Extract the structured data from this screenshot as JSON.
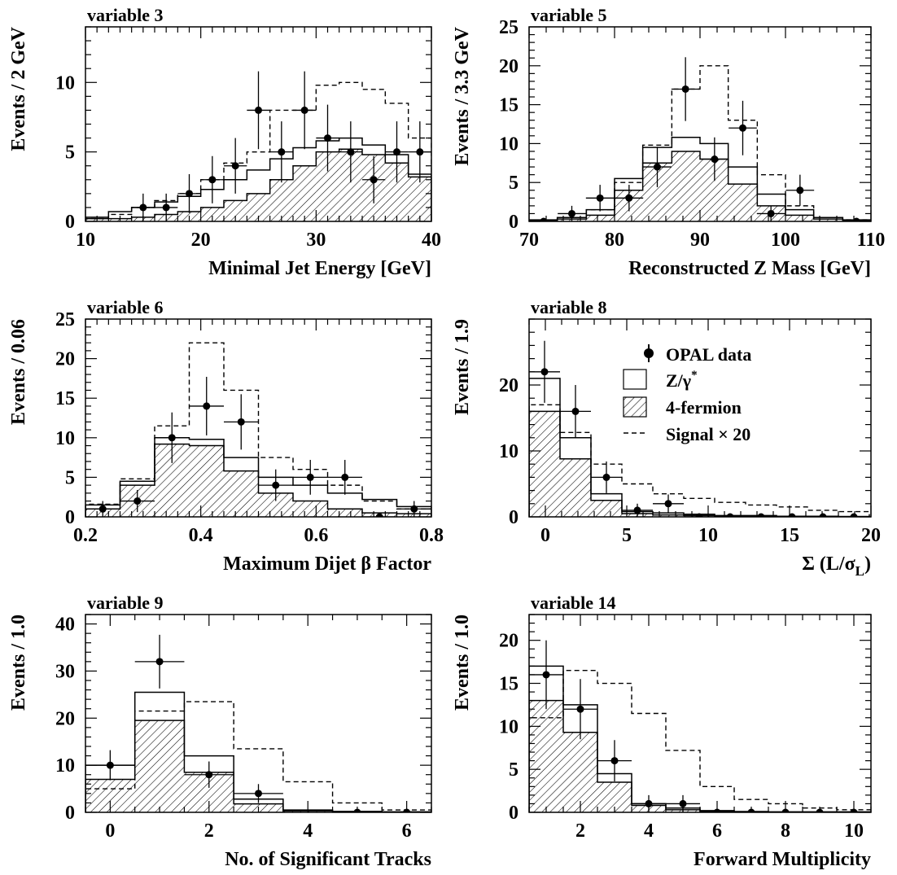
{
  "figure": {
    "background": "#ffffff",
    "ink": "#000000"
  },
  "legend": {
    "data_label": "OPAL data",
    "zg_label": "Z/γ",
    "zg_sup": "*",
    "four_fermion_label": "4-fermion",
    "signal_label": "Signal × 20"
  },
  "chart_data": [
    {
      "type": "histogram",
      "title": "variable  3",
      "xlabel": "Minimal Jet Energy [GeV]",
      "ylabel": "Events / 2 GeV",
      "xlim": [
        10,
        40
      ],
      "ylim": [
        0,
        14
      ],
      "xticks": [
        10,
        20,
        30,
        40
      ],
      "yticks": [
        0,
        5,
        10
      ],
      "minor_x": 1,
      "minor_y": 1,
      "edges": [
        10,
        12,
        14,
        16,
        18,
        20,
        22,
        24,
        26,
        28,
        30,
        32,
        34,
        36,
        38,
        40
      ],
      "series": [
        {
          "key": "four_fermion",
          "values": [
            0.2,
            0.2,
            0.3,
            0.5,
            0.7,
            1.0,
            1.5,
            2.0,
            3.0,
            4.0,
            5.0,
            5.2,
            4.8,
            4.2,
            3.2,
            1.8
          ]
        },
        {
          "key": "total_bg",
          "values": [
            0.3,
            0.7,
            1.0,
            1.4,
            1.8,
            2.3,
            3.0,
            3.7,
            4.5,
            5.3,
            5.8,
            6.0,
            5.5,
            4.8,
            3.4,
            2.0
          ]
        },
        {
          "key": "signal",
          "values": [
            0.2,
            0.5,
            1.0,
            1.5,
            2.0,
            3.0,
            4.2,
            5.0,
            8.0,
            8.0,
            9.8,
            10.0,
            9.5,
            8.5,
            6.0,
            2.0
          ]
        }
      ],
      "points": [
        {
          "x": 15,
          "y": 1,
          "err": 1
        },
        {
          "x": 17,
          "y": 1,
          "err": 1
        },
        {
          "x": 19,
          "y": 2,
          "err": 1.4
        },
        {
          "x": 21,
          "y": 3,
          "err": 1.7
        },
        {
          "x": 23,
          "y": 4,
          "err": 2.0
        },
        {
          "x": 25,
          "y": 8,
          "err": 2.8
        },
        {
          "x": 27,
          "y": 5,
          "err": 2.2
        },
        {
          "x": 29,
          "y": 8,
          "err": 2.8
        },
        {
          "x": 31,
          "y": 6,
          "err": 2.4
        },
        {
          "x": 33,
          "y": 5,
          "err": 2.2
        },
        {
          "x": 35,
          "y": 3,
          "err": 1.7
        },
        {
          "x": 37,
          "y": 5,
          "err": 2.2
        },
        {
          "x": 39,
          "y": 5,
          "err": 2.2
        }
      ]
    },
    {
      "type": "histogram",
      "title": "variable  5",
      "xlabel": "Reconstructed Z Mass [GeV]",
      "ylabel": "Events / 3.3 GeV",
      "xlim": [
        70,
        110
      ],
      "ylim": [
        0,
        25
      ],
      "xticks": [
        70,
        80,
        90,
        100,
        110
      ],
      "yticks": [
        0,
        5,
        10,
        15,
        20,
        25
      ],
      "minor_x": 2,
      "minor_y": 1,
      "edges": [
        70,
        73.3,
        76.7,
        80,
        83.3,
        86.7,
        90,
        93.3,
        96.7,
        100,
        103.3,
        106.7,
        110
      ],
      "series": [
        {
          "key": "four_fermion",
          "values": [
            0.1,
            0.3,
            0.8,
            4.0,
            7.5,
            9.0,
            8.0,
            4.8,
            2.0,
            0.8,
            0.3,
            0.1
          ]
        },
        {
          "key": "total_bg",
          "values": [
            0.2,
            0.5,
            1.5,
            5.5,
            9.5,
            10.8,
            10.0,
            7.0,
            3.5,
            1.5,
            0.5,
            0.2
          ]
        },
        {
          "key": "signal",
          "values": [
            0.1,
            0.5,
            1.5,
            5.0,
            9.8,
            17.0,
            20.0,
            13.0,
            6.0,
            2.0,
            0.5,
            0.2
          ]
        }
      ],
      "points": [
        {
          "x": 71.7,
          "y": 0,
          "err": 0
        },
        {
          "x": 75,
          "y": 1,
          "err": 1
        },
        {
          "x": 78.3,
          "y": 3,
          "err": 1.7
        },
        {
          "x": 81.7,
          "y": 3,
          "err": 1.7
        },
        {
          "x": 85,
          "y": 7,
          "err": 2.6
        },
        {
          "x": 88.3,
          "y": 17,
          "err": 4.1
        },
        {
          "x": 91.7,
          "y": 8,
          "err": 2.8
        },
        {
          "x": 95,
          "y": 12,
          "err": 3.5
        },
        {
          "x": 98.3,
          "y": 1,
          "err": 1
        },
        {
          "x": 101.7,
          "y": 4,
          "err": 2.0
        },
        {
          "x": 108.3,
          "y": 0,
          "err": 0
        }
      ]
    },
    {
      "type": "histogram",
      "title": "variable  6",
      "xlabel": "Maximum Dijet β Factor",
      "ylabel": "Events / 0.06",
      "xlim": [
        0.2,
        0.8
      ],
      "ylim": [
        0,
        25
      ],
      "xticks": [
        0.2,
        0.4,
        0.6,
        0.8
      ],
      "yticks": [
        0,
        5,
        10,
        15,
        20,
        25
      ],
      "minor_x": 0.02,
      "minor_y": 1,
      "edges": [
        0.2,
        0.26,
        0.32,
        0.38,
        0.44,
        0.5,
        0.56,
        0.62,
        0.68,
        0.74,
        0.8
      ],
      "series": [
        {
          "key": "four_fermion",
          "values": [
            1.0,
            4.0,
            9.2,
            9.0,
            5.8,
            3.0,
            2.0,
            1.0,
            0.5,
            0.4
          ]
        },
        {
          "key": "total_bg",
          "values": [
            1.5,
            4.5,
            10.0,
            9.8,
            7.5,
            5.0,
            4.0,
            3.0,
            2.2,
            1.3
          ]
        },
        {
          "key": "signal",
          "values": [
            1.6,
            4.8,
            11.5,
            22.0,
            16.0,
            7.5,
            6.0,
            4.0,
            2.0,
            1.0
          ]
        }
      ],
      "points": [
        {
          "x": 0.23,
          "y": 1,
          "err": 1
        },
        {
          "x": 0.29,
          "y": 2,
          "err": 1.4
        },
        {
          "x": 0.35,
          "y": 10,
          "err": 3.2
        },
        {
          "x": 0.41,
          "y": 14,
          "err": 3.7
        },
        {
          "x": 0.47,
          "y": 12,
          "err": 3.5
        },
        {
          "x": 0.53,
          "y": 4,
          "err": 2.0
        },
        {
          "x": 0.59,
          "y": 5,
          "err": 2.2
        },
        {
          "x": 0.65,
          "y": 5,
          "err": 2.2
        },
        {
          "x": 0.71,
          "y": 0,
          "err": 0
        },
        {
          "x": 0.77,
          "y": 1,
          "err": 1
        }
      ]
    },
    {
      "type": "histogram",
      "title": "variable  8",
      "xlabel": "Σ (L/σ",
      "xlabel_sub": "L",
      "xlabel_tail": ")",
      "ylabel": "Events / 1.9",
      "xlim": [
        -1,
        20
      ],
      "ylim": [
        0,
        30
      ],
      "xticks": [
        0,
        5,
        10,
        15,
        20
      ],
      "yticks": [
        0,
        10,
        20
      ],
      "minor_x": 1,
      "minor_y": 2,
      "edges": [
        -1,
        0.9,
        2.8,
        4.7,
        6.6,
        8.5,
        10.4,
        12.3,
        14.2,
        16.1,
        18,
        19.9
      ],
      "series": [
        {
          "key": "four_fermion",
          "values": [
            16.0,
            8.8,
            2.5,
            0.5,
            0.3,
            0.2,
            0.1,
            0.1,
            0.1,
            0.05,
            0.05
          ]
        },
        {
          "key": "total_bg",
          "values": [
            21.0,
            12.0,
            3.5,
            0.8,
            0.6,
            0.4,
            0.2,
            0.2,
            0.1,
            0.1,
            0.05
          ]
        },
        {
          "key": "signal",
          "values": [
            17.0,
            12.8,
            8.0,
            5.0,
            3.5,
            2.8,
            2.2,
            1.8,
            1.5,
            1.0,
            0.8
          ]
        }
      ],
      "points": [
        {
          "x": -0.05,
          "y": 22,
          "err": 4.7
        },
        {
          "x": 1.85,
          "y": 16,
          "err": 4.0
        },
        {
          "x": 3.75,
          "y": 6,
          "err": 2.4
        },
        {
          "x": 5.65,
          "y": 1,
          "err": 1
        },
        {
          "x": 7.55,
          "y": 2,
          "err": 1.4
        },
        {
          "x": 9.45,
          "y": 0,
          "err": 0
        },
        {
          "x": 11.35,
          "y": 0,
          "err": 0
        },
        {
          "x": 13.25,
          "y": 0,
          "err": 0
        },
        {
          "x": 15.15,
          "y": 0,
          "err": 0
        },
        {
          "x": 17.05,
          "y": 0,
          "err": 0
        },
        {
          "x": 18.95,
          "y": 0,
          "err": 0
        }
      ]
    },
    {
      "type": "histogram",
      "title": "variable  9",
      "xlabel": "No. of Significant Tracks",
      "ylabel": "Events / 1.0",
      "xlim": [
        -0.5,
        6.5
      ],
      "ylim": [
        0,
        42
      ],
      "xticks": [
        0,
        2,
        4,
        6
      ],
      "yticks": [
        0,
        10,
        20,
        30,
        40
      ],
      "minor_x": 0.5,
      "minor_y": 2,
      "edges": [
        -0.5,
        0.5,
        1.5,
        2.5,
        3.5,
        4.5,
        5.5,
        6.5
      ],
      "series": [
        {
          "key": "four_fermion",
          "values": [
            7.0,
            19.5,
            8.5,
            1.8,
            0.3,
            0.1,
            0.05
          ]
        },
        {
          "key": "total_bg",
          "values": [
            10.0,
            25.5,
            12.0,
            2.8,
            0.5,
            0.2,
            0.1
          ]
        },
        {
          "key": "signal",
          "values": [
            5.0,
            21.5,
            23.5,
            13.5,
            6.5,
            2.0,
            0.5
          ]
        }
      ],
      "points": [
        {
          "x": 0,
          "y": 10,
          "err": 3.2
        },
        {
          "x": 1,
          "y": 32,
          "err": 5.7
        },
        {
          "x": 2,
          "y": 8,
          "err": 2.8
        },
        {
          "x": 3,
          "y": 4,
          "err": 2.0
        },
        {
          "x": 5,
          "y": 0,
          "err": 0
        },
        {
          "x": 6,
          "y": 0,
          "err": 0
        }
      ]
    },
    {
      "type": "histogram",
      "title": "variable  14",
      "xlabel": "Forward Multiplicity",
      "ylabel": "Events / 1.0",
      "xlim": [
        0.5,
        10.5
      ],
      "ylim": [
        0,
        23
      ],
      "xticks": [
        2,
        4,
        6,
        8,
        10
      ],
      "yticks": [
        0,
        5,
        10,
        15,
        20
      ],
      "minor_x": 0.5,
      "minor_y": 1,
      "edges": [
        0.5,
        1.5,
        2.5,
        3.5,
        4.5,
        5.5,
        6.5,
        7.5,
        8.5,
        9.5,
        10.5
      ],
      "series": [
        {
          "key": "four_fermion",
          "values": [
            13.0,
            9.3,
            3.5,
            0.8,
            0.3,
            0.1,
            0.05,
            0.05,
            0.05,
            0.05
          ]
        },
        {
          "key": "total_bg",
          "values": [
            17.0,
            12.5,
            4.5,
            1.0,
            0.5,
            0.2,
            0.1,
            0.05,
            0.05,
            0.05
          ]
        },
        {
          "key": "signal",
          "values": [
            11.0,
            16.5,
            15.0,
            11.5,
            7.2,
            3.0,
            1.5,
            1.0,
            0.5,
            0.3
          ]
        }
      ],
      "points": [
        {
          "x": 1,
          "y": 16,
          "err": 4.0
        },
        {
          "x": 2,
          "y": 12,
          "err": 3.5
        },
        {
          "x": 3,
          "y": 6,
          "err": 2.4
        },
        {
          "x": 4,
          "y": 1,
          "err": 1
        },
        {
          "x": 5,
          "y": 1,
          "err": 1
        },
        {
          "x": 6,
          "y": 0,
          "err": 0
        },
        {
          "x": 7,
          "y": 0,
          "err": 0
        },
        {
          "x": 8,
          "y": 0,
          "err": 0
        },
        {
          "x": 9,
          "y": 0,
          "err": 0
        },
        {
          "x": 10,
          "y": 0,
          "err": 0
        }
      ]
    }
  ]
}
